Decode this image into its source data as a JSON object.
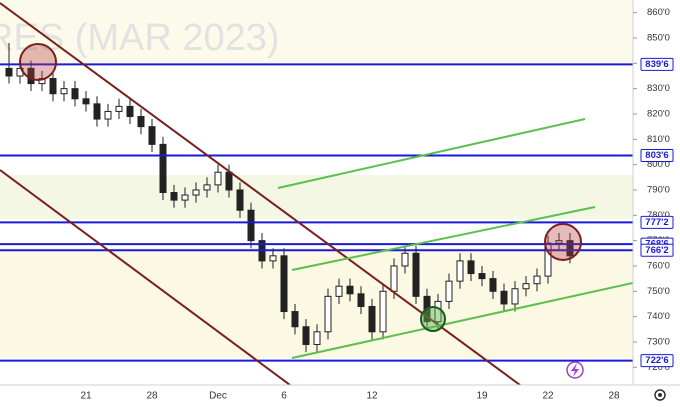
{
  "chart_data": {
    "type": "candlestick",
    "title": "RES (MAR 2023)",
    "categories": [
      null,
      null,
      null,
      null,
      null,
      null,
      null,
      "21",
      null,
      null,
      null,
      null,
      null,
      "28",
      null,
      null,
      null,
      null,
      null,
      "Dec",
      null,
      null,
      null,
      null,
      null,
      "6",
      null,
      null,
      null,
      null,
      null,
      null,
      null,
      "12",
      null,
      null,
      null,
      null,
      null,
      null,
      null,
      null,
      null,
      "19",
      null,
      null,
      null,
      null,
      null,
      "22",
      null,
      null,
      null,
      null,
      null,
      "28",
      null
    ],
    "open": [
      838,
      835,
      838,
      832,
      834,
      828,
      830,
      826,
      824,
      818,
      821,
      823,
      819,
      815,
      808,
      789,
      786,
      788,
      790,
      792,
      797,
      790,
      782,
      770,
      762,
      764,
      742,
      736,
      729,
      734,
      748,
      752,
      749,
      744,
      734,
      750,
      760,
      765,
      748,
      738,
      746,
      754,
      762,
      757,
      755,
      750,
      745,
      751,
      753,
      756,
      769,
      770,
      null,
      null,
      null,
      null,
      null
    ],
    "high": [
      848,
      841,
      841,
      837,
      837,
      833,
      833,
      829,
      827,
      824,
      826,
      826,
      822,
      818,
      811,
      792,
      791,
      793,
      795,
      800,
      800,
      793,
      785,
      773,
      767,
      767,
      745,
      739,
      737,
      751,
      755,
      755,
      752,
      747,
      753,
      763,
      768,
      768,
      751,
      749,
      757,
      765,
      765,
      760,
      758,
      753,
      754,
      756,
      759,
      772,
      773,
      773,
      null,
      null,
      null,
      null,
      null
    ],
    "low": [
      832,
      832,
      829,
      829,
      825,
      825,
      823,
      821,
      815,
      815,
      818,
      816,
      812,
      805,
      786,
      783,
      783,
      785,
      787,
      789,
      787,
      779,
      767,
      759,
      759,
      739,
      733,
      726,
      726,
      731,
      745,
      746,
      741,
      731,
      731,
      747,
      757,
      745,
      735,
      735,
      743,
      751,
      754,
      752,
      747,
      742,
      742,
      748,
      750,
      753,
      766,
      761,
      null,
      null,
      null,
      null,
      null
    ],
    "close": [
      835,
      838,
      832,
      834,
      828,
      830,
      826,
      824,
      818,
      821,
      823,
      819,
      815,
      808,
      789,
      786,
      788,
      790,
      792,
      797,
      790,
      782,
      770,
      762,
      764,
      742,
      736,
      729,
      734,
      748,
      752,
      749,
      744,
      734,
      750,
      760,
      765,
      748,
      738,
      746,
      754,
      762,
      757,
      755,
      750,
      745,
      751,
      753,
      756,
      769,
      770,
      764,
      null,
      null,
      null,
      null,
      null
    ],
    "color": "#222222",
    "ylim": [
      713,
      865
    ],
    "yticks": [
      {
        "value": 720,
        "label": "720'0"
      },
      {
        "value": 730,
        "label": "730'0"
      },
      {
        "value": 740,
        "label": "740'0"
      },
      {
        "value": 750,
        "label": "750'0"
      },
      {
        "value": 760,
        "label": "760'0"
      },
      {
        "value": 770,
        "label": "770'0"
      },
      {
        "value": 780,
        "label": "780'0"
      },
      {
        "value": 790,
        "label": "790'0"
      },
      {
        "value": 800,
        "label": "800'0"
      },
      {
        "value": 810,
        "label": "810'0"
      },
      {
        "value": 820,
        "label": "820'0"
      },
      {
        "value": 830,
        "label": "830'0"
      },
      {
        "value": 840,
        "label": "840'0"
      },
      {
        "value": 850,
        "label": "850'0"
      },
      {
        "value": 860,
        "label": "860'0"
      }
    ],
    "levels": [
      {
        "value": 839.6,
        "label": "839'6"
      },
      {
        "value": 803.6,
        "label": "803'6"
      },
      {
        "value": 777.2,
        "label": "777'2"
      },
      {
        "value": 768.6,
        "label": "768'6"
      },
      {
        "value": 766.2,
        "label": "766'2"
      },
      {
        "value": 722.6,
        "label": "722'6"
      }
    ],
    "level_color": "#1a1adb"
  }
}
